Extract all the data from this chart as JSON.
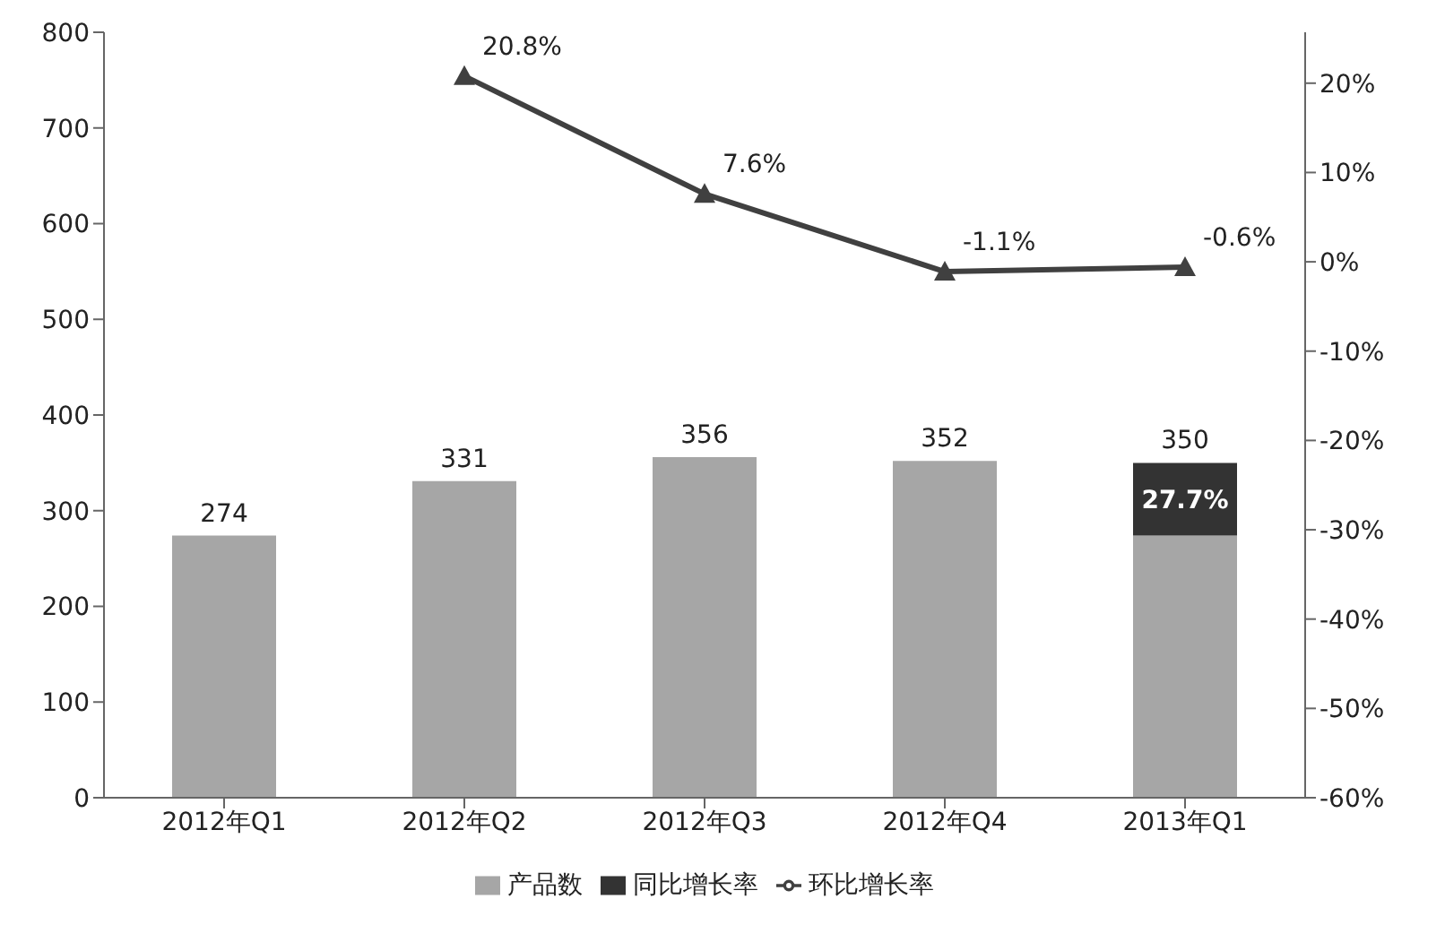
{
  "chart_data": {
    "type": "bar",
    "stacked": true,
    "categories": [
      "2012年Q1",
      "2012年Q2",
      "2012年Q3",
      "2012年Q4",
      "2013年Q1"
    ],
    "series": [
      {
        "name": "产品数",
        "color": "#a6a6a6",
        "values": [
          274,
          331,
          356,
          352,
          274
        ]
      },
      {
        "name": "同比增长率",
        "color": "#333333",
        "values": [
          null,
          null,
          null,
          null,
          76
        ]
      },
      {
        "name": "环比增长率",
        "type": "line",
        "axis": "y2",
        "color": "#404040",
        "marker": "triangle",
        "values": [
          null,
          20.8,
          7.6,
          -1.1,
          -0.6
        ],
        "value_labels": [
          null,
          "20.8%",
          "7.6%",
          "-1.1%",
          "-0.6%"
        ]
      }
    ],
    "totals": [
      "274",
      "331",
      "356",
      "352",
      "350"
    ],
    "ylim": [
      0,
      800
    ],
    "yticks": [
      0,
      100,
      200,
      300,
      400,
      500,
      600,
      700,
      800
    ],
    "y2lim": [
      -60,
      25.7
    ],
    "y2ticks": [
      {
        "value": -60,
        "label": "-60%"
      },
      {
        "value": -50,
        "label": "-50%"
      },
      {
        "value": -40,
        "label": "-40%"
      },
      {
        "value": -30,
        "label": "-30%"
      },
      {
        "value": -20,
        "label": "-20%"
      },
      {
        "value": -10,
        "label": "-10%"
      },
      {
        "value": 0,
        "label": "0%"
      },
      {
        "value": 10,
        "label": "10%"
      },
      {
        "value": 20,
        "label": "20%"
      }
    ],
    "annotations": [
      "27.7%"
    ],
    "grid": false,
    "legend": "bottom"
  }
}
